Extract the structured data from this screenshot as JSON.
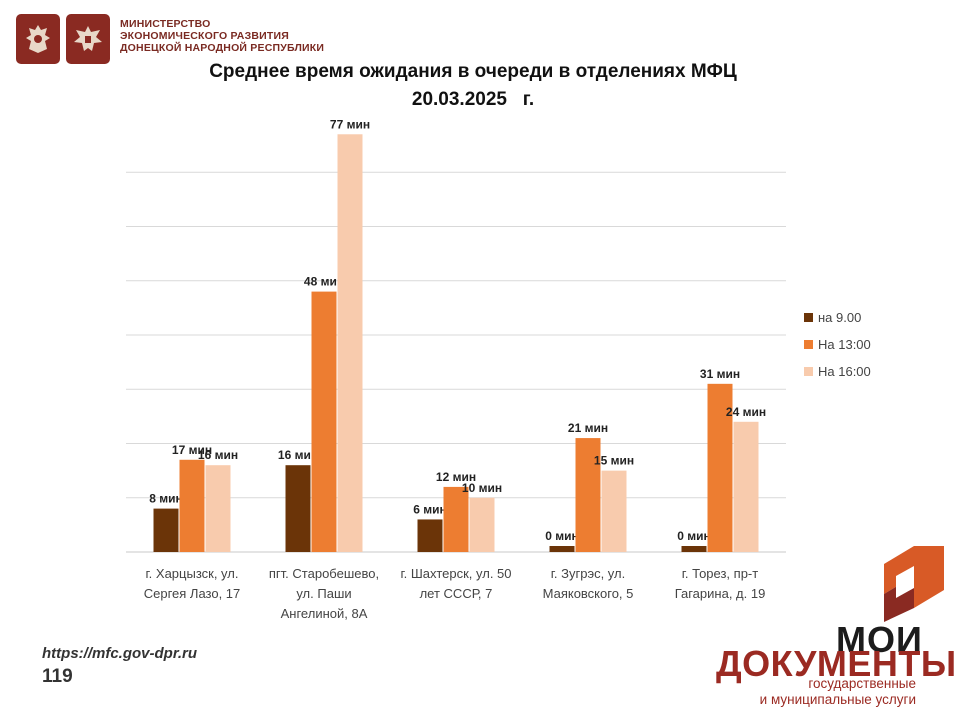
{
  "header": {
    "ministry_lines": [
      "МИНИСТЕРСТВО",
      "ЭКОНОМИЧЕСКОГО РАЗВИТИЯ",
      "ДОНЕЦКОЙ НАРОДНОЙ РЕСПУБЛИКИ"
    ]
  },
  "chart_data": {
    "type": "bar",
    "title": "Среднее время ожидания в очереди в отделениях МФЦ",
    "subtitle": "20.03.2025   г.",
    "unit": "мин",
    "categories": [
      [
        "г. Харцызск, ул.",
        "Сергея Лазо, 17"
      ],
      [
        "пгт. Старобешево,",
        "ул. Паши",
        "Ангелиной, 8А"
      ],
      [
        "г. Шахтерск, ул. 50",
        "лет СССР, 7"
      ],
      [
        "г. Зугрэс, ул.",
        "Маяковского, 5"
      ],
      [
        "г. Торез, пр-т",
        "Гагарина, д. 19"
      ]
    ],
    "series": [
      {
        "name": "на 9.00",
        "color": "#6b3408",
        "values": [
          8,
          16,
          6,
          0,
          0
        ]
      },
      {
        "name": "На 13:00",
        "color": "#ed7d31",
        "values": [
          17,
          48,
          12,
          21,
          31
        ]
      },
      {
        "name": "На 16:00",
        "color": "#f8cbad",
        "values": [
          16,
          77,
          10,
          15,
          24
        ]
      }
    ],
    "ylim": [
      0,
      80
    ],
    "grid": true,
    "legend_position": "right"
  },
  "footer": {
    "url": "https://mfc.gov-dpr.ru",
    "page_number": "119"
  },
  "brand": {
    "line1": "МОИ",
    "line2": "ДОКУМЕНТЫ",
    "sub1": "государственные",
    "sub2": "и муниципальные услуги"
  }
}
